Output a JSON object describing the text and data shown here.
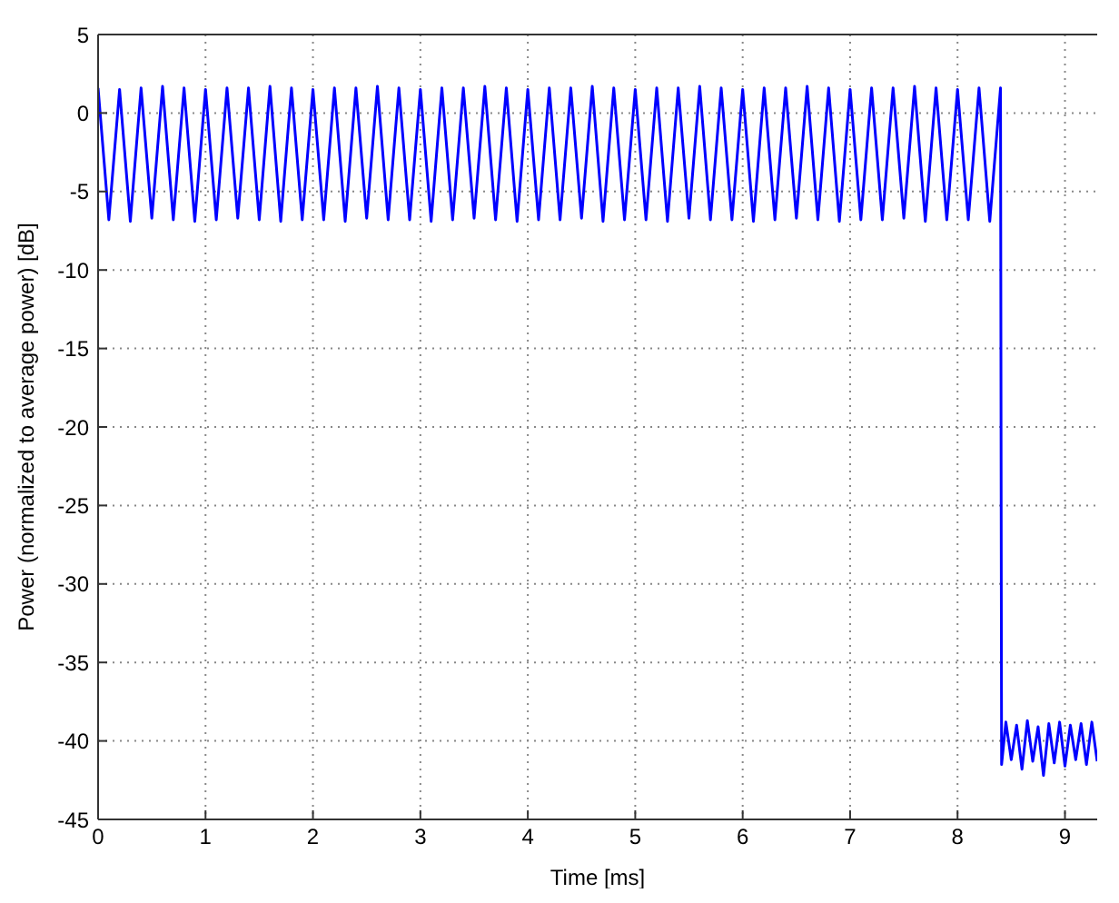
{
  "chart_data": {
    "type": "line",
    "xlabel": "Time [ms]",
    "ylabel": "Power (normalized to average power) [dB]",
    "xlim": [
      0,
      9.3
    ],
    "xticks": [
      0,
      1,
      2,
      3,
      4,
      5,
      6,
      7,
      8,
      9
    ],
    "ylim": [
      -45,
      5
    ],
    "yticks": [
      5,
      0,
      -5,
      -10,
      -15,
      -20,
      -25,
      -30,
      -35,
      -40,
      -45
    ],
    "grid": true,
    "series": [
      {
        "color": "#0000ff",
        "x": [
          0,
          0.1,
          0.2,
          0.3,
          0.4,
          0.5,
          0.6,
          0.7,
          0.8,
          0.9,
          1,
          1.1,
          1.2,
          1.3,
          1.4,
          1.5,
          1.6,
          1.7,
          1.8,
          1.9,
          2,
          2.1,
          2.2,
          2.3,
          2.4,
          2.5,
          2.6,
          2.7,
          2.8,
          2.9,
          3,
          3.1,
          3.2,
          3.3,
          3.4,
          3.5,
          3.6,
          3.7,
          3.8,
          3.9,
          4,
          4.1,
          4.2,
          4.3,
          4.4,
          4.5,
          4.6,
          4.7,
          4.8,
          4.9,
          5,
          5.1,
          5.2,
          5.3,
          5.4,
          5.5,
          5.6,
          5.7,
          5.8,
          5.9,
          6,
          6.1,
          6.2,
          6.3,
          6.4,
          6.5,
          6.6,
          6.7,
          6.8,
          6.9,
          7,
          7.1,
          7.2,
          7.3,
          7.4,
          7.5,
          7.6,
          7.7,
          7.8,
          7.9,
          8,
          8.1,
          8.2,
          8.3,
          8.4,
          8.41,
          8.45,
          8.5,
          8.55,
          8.6,
          8.65,
          8.7,
          8.75,
          8.8,
          8.85,
          8.9,
          8.95,
          9,
          9.05,
          9.1,
          9.15,
          9.2,
          9.25,
          9.3
        ],
        "values": [
          1.6,
          -6.8,
          1.5,
          -6.9,
          1.6,
          -6.7,
          1.7,
          -6.8,
          1.6,
          -6.9,
          1.5,
          -6.8,
          1.6,
          -6.7,
          1.6,
          -6.8,
          1.7,
          -6.9,
          1.6,
          -6.8,
          1.5,
          -6.8,
          1.6,
          -6.9,
          1.6,
          -6.7,
          1.7,
          -6.8,
          1.6,
          -6.8,
          1.5,
          -6.9,
          1.6,
          -6.8,
          1.6,
          -6.7,
          1.7,
          -6.8,
          1.6,
          -6.9,
          1.5,
          -6.8,
          1.6,
          -6.8,
          1.6,
          -6.7,
          1.7,
          -6.9,
          1.6,
          -6.8,
          1.5,
          -6.8,
          1.6,
          -6.9,
          1.6,
          -6.7,
          1.7,
          -6.8,
          1.6,
          -6.8,
          1.5,
          -6.9,
          1.6,
          -6.8,
          1.6,
          -6.7,
          1.7,
          -6.8,
          1.6,
          -6.9,
          1.5,
          -6.8,
          1.6,
          -6.8,
          1.6,
          -6.7,
          1.7,
          -6.9,
          1.6,
          -6.8,
          1.5,
          -6.8,
          1.6,
          -6.9,
          1.6,
          -41.5,
          -38.8,
          -41.2,
          -39,
          -41.8,
          -38.7,
          -41.3,
          -39.1,
          -42.2,
          -38.9,
          -41.4,
          -38.8,
          -41.6,
          -39,
          -41.2,
          -38.9,
          -41.5,
          -38.8,
          -41.3
        ]
      }
    ]
  }
}
